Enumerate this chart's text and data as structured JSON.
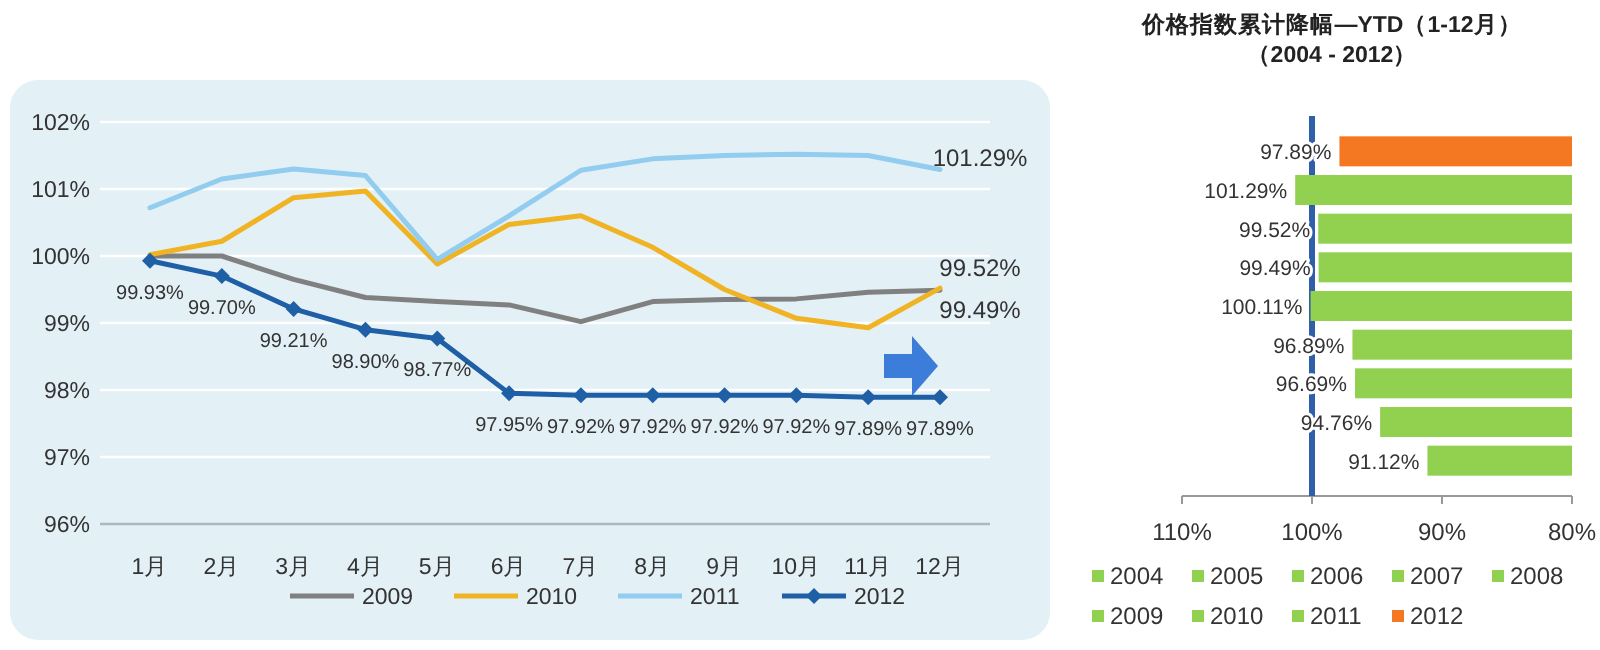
{
  "chart_data": [
    {
      "type": "line",
      "categories": [
        "1月",
        "2月",
        "3月",
        "4月",
        "5月",
        "6月",
        "7月",
        "8月",
        "9月",
        "10月",
        "11月",
        "12月"
      ],
      "ylim": [
        96,
        102
      ],
      "yticks": [
        {
          "value": 96,
          "label": "96%"
        },
        {
          "value": 97,
          "label": "97%"
        },
        {
          "value": 98,
          "label": "98%"
        },
        {
          "value": 99,
          "label": "99%"
        },
        {
          "value": 100,
          "label": "100%"
        },
        {
          "value": 101,
          "label": "101%"
        },
        {
          "value": 102,
          "label": "102%"
        }
      ],
      "grid": "y",
      "legend": "bottom",
      "series": [
        {
          "name": "2009",
          "color": "#808080",
          "marker": "none",
          "values": [
            100,
            100,
            99.65,
            99.38,
            99.32,
            99.27,
            99.02,
            99.32,
            99.35,
            99.36,
            99.46,
            99.49
          ],
          "value_labels": [
            null,
            null,
            null,
            null,
            null,
            null,
            null,
            null,
            null,
            null,
            null,
            "99.49%"
          ]
        },
        {
          "name": "2010",
          "color": "#f0b323",
          "marker": "none",
          "values": [
            100.02,
            100.22,
            100.87,
            100.97,
            99.88,
            100.47,
            100.6,
            100.13,
            99.5,
            99.07,
            98.93,
            99.52
          ],
          "value_labels": [
            null,
            null,
            null,
            null,
            null,
            null,
            null,
            null,
            null,
            null,
            null,
            "99.52%"
          ]
        },
        {
          "name": "2011",
          "color": "#92cdf0",
          "marker": "none",
          "values": [
            100.72,
            101.15,
            101.3,
            101.2,
            99.95,
            100.6,
            101.28,
            101.45,
            101.5,
            101.52,
            101.5,
            101.29
          ],
          "value_labels": [
            null,
            null,
            null,
            null,
            null,
            null,
            null,
            null,
            null,
            null,
            null,
            "101.29%"
          ]
        },
        {
          "name": "2012",
          "color": "#1f5fa6",
          "marker": "diamond",
          "values": [
            99.93,
            99.7,
            99.21,
            98.9,
            98.77,
            97.95,
            97.92,
            97.92,
            97.92,
            97.92,
            97.89,
            97.89
          ],
          "value_labels": [
            "99.93%",
            "99.70%",
            "99.21%",
            "98.90%",
            "98.77%",
            "97.95%",
            "97.92%",
            "97.92%",
            "97.92%",
            "97.92%",
            "97.89%",
            "97.89%"
          ]
        }
      ]
    },
    {
      "type": "bar",
      "orientation": "horizontal",
      "title": "价格指数累计降幅—YTD（1-12月）",
      "subtitle": "（2004 - 2012）",
      "categories": [
        null,
        null,
        null,
        null,
        null,
        null,
        null,
        null,
        null
      ],
      "xlim": [
        110,
        80
      ],
      "xticks": [
        {
          "value": 110,
          "label": "110%"
        },
        {
          "value": 100,
          "label": "100%"
        },
        {
          "value": 90,
          "label": "90%"
        },
        {
          "value": 80,
          "label": "80%"
        }
      ],
      "legend": "bottom",
      "ref_lines": [
        {
          "axis": "x",
          "value": 100,
          "color": "#2e5fa8"
        }
      ],
      "series": [
        {
          "name": "2004",
          "color": "#92d050",
          "values": [
            null,
            null,
            null,
            null,
            null,
            null,
            null,
            null,
            91.12
          ],
          "value_labels": [
            null,
            null,
            null,
            null,
            null,
            null,
            null,
            null,
            "91.12%"
          ]
        },
        {
          "name": "2005",
          "color": "#92d050",
          "values": [
            null,
            null,
            null,
            null,
            null,
            null,
            null,
            94.76,
            null
          ],
          "value_labels": [
            null,
            null,
            null,
            null,
            null,
            null,
            null,
            "94.76%",
            null
          ]
        },
        {
          "name": "2006",
          "color": "#92d050",
          "values": [
            null,
            null,
            null,
            null,
            null,
            null,
            96.69,
            null,
            null
          ],
          "value_labels": [
            null,
            null,
            null,
            null,
            null,
            null,
            "96.69%",
            null,
            null
          ]
        },
        {
          "name": "2007",
          "color": "#92d050",
          "values": [
            null,
            null,
            null,
            null,
            null,
            96.89,
            null,
            null,
            null
          ],
          "value_labels": [
            null,
            null,
            null,
            null,
            null,
            "96.89%",
            null,
            null,
            null
          ]
        },
        {
          "name": "2008",
          "color": "#92d050",
          "values": [
            null,
            null,
            null,
            null,
            100.11,
            null,
            null,
            null,
            null
          ],
          "value_labels": [
            null,
            null,
            null,
            null,
            "100.11%",
            null,
            null,
            null,
            null
          ]
        },
        {
          "name": "2009",
          "color": "#92d050",
          "values": [
            null,
            null,
            null,
            99.49,
            null,
            null,
            null,
            null,
            null
          ],
          "value_labels": [
            null,
            null,
            null,
            "99.49%",
            null,
            null,
            null,
            null,
            null
          ]
        },
        {
          "name": "2010",
          "color": "#92d050",
          "values": [
            null,
            null,
            99.52,
            null,
            null,
            null,
            null,
            null,
            null
          ],
          "value_labels": [
            null,
            null,
            "99.52%",
            null,
            null,
            null,
            null,
            null,
            null
          ]
        },
        {
          "name": "2011",
          "color": "#92d050",
          "values": [
            null,
            101.29,
            null,
            null,
            null,
            null,
            null,
            null,
            null
          ],
          "value_labels": [
            null,
            "101.29%",
            null,
            null,
            null,
            null,
            null,
            null,
            null
          ]
        },
        {
          "name": "2012",
          "color": "#f47721",
          "values": [
            97.89,
            null,
            null,
            null,
            null,
            null,
            null,
            null,
            null
          ],
          "value_labels": [
            "97.89%",
            null,
            null,
            null,
            null,
            null,
            null,
            null,
            null
          ]
        }
      ]
    }
  ]
}
